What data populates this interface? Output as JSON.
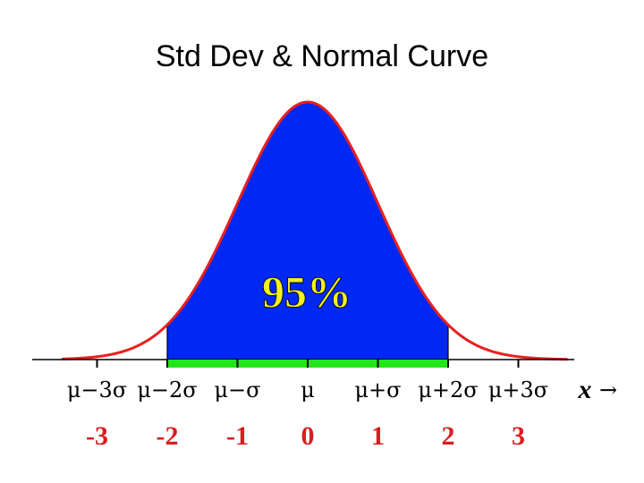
{
  "title": "Std Dev & Normal Curve",
  "chart_data": {
    "type": "area",
    "distribution": "normal",
    "mean": 0,
    "std_dev": 1,
    "xlim": [
      -3.5,
      3.7
    ],
    "shaded_interval": [
      -2,
      2
    ],
    "shaded_label": "95%",
    "tick_values": [
      -3,
      -2,
      -1,
      0,
      1,
      2,
      3
    ],
    "tick_symbol_labels": [
      "μ−3σ",
      "μ−2σ",
      "μ−σ",
      "μ",
      "μ+σ",
      "μ+2σ",
      "μ+3σ"
    ],
    "tick_number_labels": [
      "-3",
      "-2",
      "-1",
      "0",
      "1",
      "2",
      "3"
    ],
    "x_variable_label": "x",
    "x_arrow": "→",
    "grid": false,
    "legend": "none"
  },
  "colors": {
    "curve": "#e8201e",
    "shaded_fill": "#0028f2",
    "interval_bar": "#22e61a",
    "percent_text": "#f2f21e",
    "number_text": "#d81e1e",
    "axis": "#000000",
    "symbol_text": "#000000"
  }
}
